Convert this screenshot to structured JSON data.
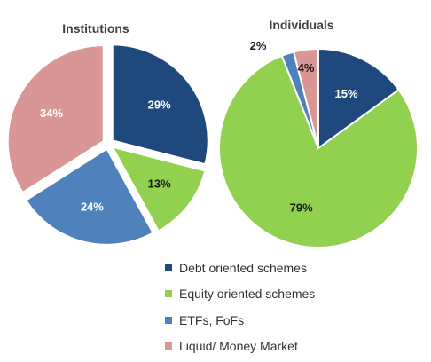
{
  "colors": {
    "debt": "#1f497d",
    "equity": "#92d050",
    "etf": "#4f81bd",
    "liquid": "#d99694",
    "label_light": "#ffffff",
    "label_dark": "#1a1a1a"
  },
  "legend": [
    {
      "label": "Debt oriented schemes",
      "color_key": "debt"
    },
    {
      "label": "Equity oriented schemes",
      "color_key": "equity"
    },
    {
      "label": "ETFs, FoFs",
      "color_key": "etf"
    },
    {
      "label": "Liquid/ Money Market",
      "color_key": "liquid"
    }
  ],
  "chart_data": [
    {
      "type": "pie",
      "title": "Institutions",
      "slices": [
        {
          "category": "Debt oriented schemes",
          "value": 29,
          "label": "29%",
          "color_key": "debt"
        },
        {
          "category": "Equity oriented schemes",
          "value": 13,
          "label": "13%",
          "color_key": "equity"
        },
        {
          "category": "ETFs, FoFs",
          "value": 24,
          "label": "24%",
          "color_key": "etf"
        },
        {
          "category": "Liquid/ Money Market",
          "value": 34,
          "label": "34%",
          "color_key": "liquid"
        }
      ]
    },
    {
      "type": "pie",
      "title": "Individuals",
      "slices": [
        {
          "category": "Debt oriented schemes",
          "value": 15,
          "label": "15%",
          "color_key": "debt"
        },
        {
          "category": "Equity oriented schemes",
          "value": 79,
          "label": "79%",
          "color_key": "equity"
        },
        {
          "category": "ETFs, FoFs",
          "value": 2,
          "label": "2%",
          "color_key": "etf"
        },
        {
          "category": "Liquid/ Money Market",
          "value": 4,
          "label": "4%",
          "color_key": "liquid"
        }
      ]
    }
  ]
}
